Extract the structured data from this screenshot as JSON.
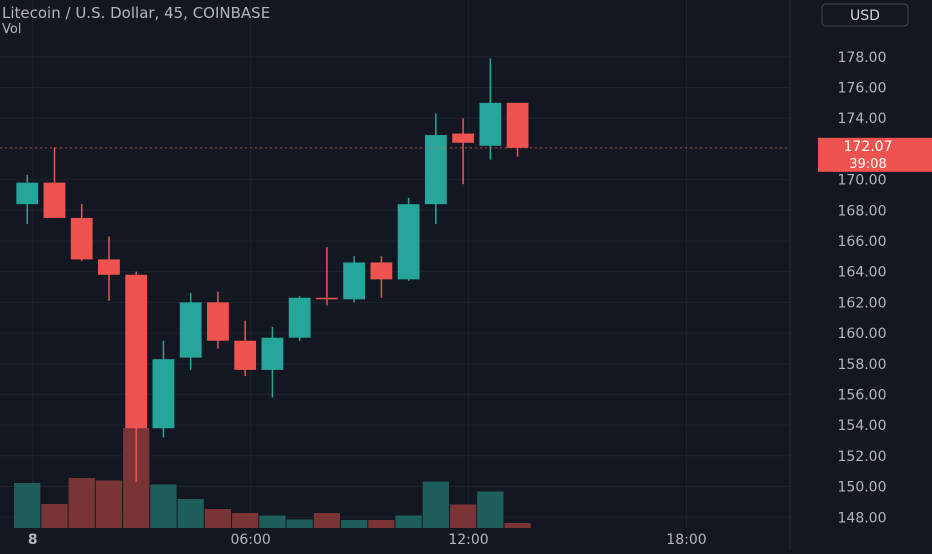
{
  "header": {
    "title": "Litecoin / U.S. Dollar, 45, COINBASE",
    "volume_label": "Vol",
    "currency": "USD"
  },
  "price_marker": {
    "price": "172.07",
    "countdown": "39:08"
  },
  "colors": {
    "background": "#131722",
    "up": "#26a69a",
    "down": "#ef5350",
    "up_volume": "#1f5f5b",
    "down_volume": "#7a3436",
    "grid": "#1e222d",
    "text": "#b2b5be"
  },
  "chart_data": {
    "type": "candlestick",
    "title": "Litecoin / U.S. Dollar, 45, COINBASE",
    "ylim": [
      147.3,
      181.7
    ],
    "y_ticks": [
      148,
      150,
      152,
      154,
      156,
      158,
      160,
      162,
      164,
      166,
      168,
      170,
      172,
      174,
      176,
      178
    ],
    "x_ticks": [
      {
        "label": "8",
        "t": 0.2
      },
      {
        "label": "06:00",
        "t": 8.2
      },
      {
        "label": "12:00",
        "t": 16.2
      },
      {
        "label": "18:00",
        "t": 24.2
      }
    ],
    "t_range": [
      -1,
      28
    ],
    "candles": [
      {
        "t": 0,
        "open": 168.4,
        "high": 170.3,
        "low": 167.1,
        "close": 169.8,
        "volume": 0.9
      },
      {
        "t": 1,
        "open": 169.8,
        "high": 172.1,
        "low": 167.5,
        "close": 167.5,
        "volume": 0.48
      },
      {
        "t": 2,
        "open": 167.5,
        "high": 168.4,
        "low": 164.7,
        "close": 164.8,
        "volume": 1.0
      },
      {
        "t": 3,
        "open": 164.8,
        "high": 166.3,
        "low": 162.1,
        "close": 163.8,
        "volume": 0.95
      },
      {
        "t": 4,
        "open": 163.8,
        "high": 164.0,
        "low": 150.3,
        "close": 153.8,
        "volume": 2.0
      },
      {
        "t": 5,
        "open": 153.8,
        "high": 159.5,
        "low": 153.2,
        "close": 158.3,
        "volume": 0.87
      },
      {
        "t": 6,
        "open": 158.4,
        "high": 162.6,
        "low": 157.6,
        "close": 162.0,
        "volume": 0.58
      },
      {
        "t": 7,
        "open": 162.0,
        "high": 162.7,
        "low": 159.0,
        "close": 159.5,
        "volume": 0.38
      },
      {
        "t": 8,
        "open": 159.5,
        "high": 160.8,
        "low": 157.2,
        "close": 157.6,
        "volume": 0.3
      },
      {
        "t": 9,
        "open": 157.6,
        "high": 160.4,
        "low": 155.8,
        "close": 159.7,
        "volume": 0.25
      },
      {
        "t": 10,
        "open": 159.7,
        "high": 162.4,
        "low": 159.5,
        "close": 162.3,
        "volume": 0.17
      },
      {
        "t": 11,
        "open": 162.3,
        "high": 165.6,
        "low": 161.8,
        "close": 162.2,
        "volume": 0.3
      },
      {
        "t": 12,
        "open": 162.2,
        "high": 165.0,
        "low": 162.0,
        "close": 164.6,
        "volume": 0.16
      },
      {
        "t": 13,
        "open": 164.6,
        "high": 165.0,
        "low": 162.3,
        "close": 163.5,
        "volume": 0.16
      },
      {
        "t": 14,
        "open": 163.5,
        "high": 168.8,
        "low": 163.4,
        "close": 168.4,
        "volume": 0.25
      },
      {
        "t": 15,
        "open": 168.4,
        "high": 174.3,
        "low": 167.1,
        "close": 172.9,
        "volume": 0.93
      },
      {
        "t": 16,
        "open": 173.0,
        "high": 174.0,
        "low": 169.7,
        "close": 172.4,
        "volume": 0.47
      },
      {
        "t": 17,
        "open": 172.2,
        "high": 177.9,
        "low": 171.3,
        "close": 175.0,
        "volume": 0.73
      },
      {
        "t": 18,
        "open": 175.0,
        "high": 175.0,
        "low": 171.5,
        "close": 172.07,
        "volume": 0.1
      }
    ]
  }
}
